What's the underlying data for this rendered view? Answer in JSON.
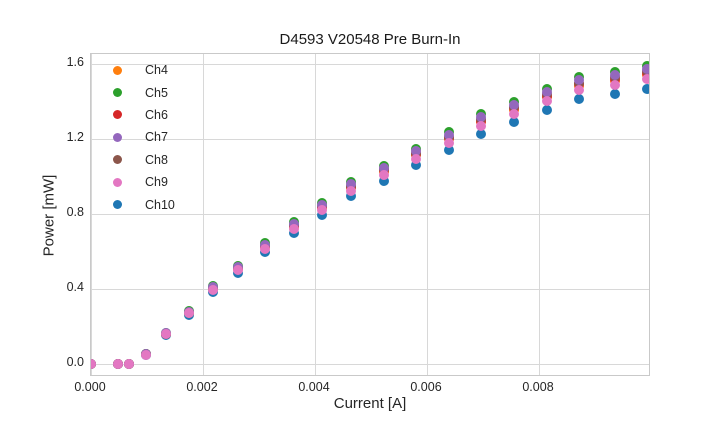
{
  "chart_data": {
    "type": "scatter",
    "title": "D4593 V20548 Pre Burn-In",
    "xlabel": "Current [A]",
    "ylabel": "Power [mW]",
    "xlim": [
      0,
      0.01
    ],
    "ylim": [
      -0.069,
      1.653
    ],
    "grid": true,
    "legend_position": "upper left",
    "xticks": {
      "values": [
        0.0,
        0.002,
        0.004,
        0.006,
        0.008
      ],
      "labels": [
        "0.000",
        "0.002",
        "0.004",
        "0.006",
        "0.008"
      ]
    },
    "yticks": {
      "values": [
        0.0,
        0.4,
        0.8,
        1.2,
        1.6
      ],
      "labels": [
        "0.0",
        "0.4",
        "0.8",
        "1.2",
        "1.6"
      ]
    },
    "x": [
      0.0,
      0.00048,
      0.00068,
      0.00098,
      0.00134,
      0.00175,
      0.00218,
      0.00263,
      0.00311,
      0.00363,
      0.00412,
      0.00465,
      0.00524,
      0.0058,
      0.00639,
      0.00696,
      0.00755,
      0.00814,
      0.00872,
      0.00935,
      0.00993
    ],
    "series": [
      {
        "name": "Ch4",
        "color": "#ff7f0e",
        "values": [
          0,
          0,
          0,
          0.051,
          0.161,
          0.274,
          0.401,
          0.508,
          0.625,
          0.732,
          0.833,
          0.94,
          1.026,
          1.113,
          1.199,
          1.29,
          1.356,
          1.422,
          1.483,
          1.511,
          1.542
        ]
      },
      {
        "name": "Ch5",
        "color": "#2ca02c",
        "values": [
          0,
          0,
          0,
          0.052,
          0.166,
          0.283,
          0.414,
          0.524,
          0.645,
          0.755,
          0.859,
          0.969,
          1.058,
          1.148,
          1.237,
          1.331,
          1.399,
          1.467,
          1.53,
          1.558,
          1.591
        ]
      },
      {
        "name": "Ch6",
        "color": "#d62728",
        "values": [
          0,
          0,
          0,
          0.051,
          0.161,
          0.276,
          0.404,
          0.511,
          0.629,
          0.736,
          0.838,
          0.945,
          1.032,
          1.119,
          1.206,
          1.298,
          1.364,
          1.431,
          1.492,
          1.52,
          1.551
        ]
      },
      {
        "name": "Ch7",
        "color": "#9467bd",
        "values": [
          0,
          0,
          0,
          0.052,
          0.164,
          0.28,
          0.409,
          0.518,
          0.637,
          0.746,
          0.85,
          0.958,
          1.046,
          1.134,
          1.222,
          1.316,
          1.383,
          1.45,
          1.513,
          1.541,
          1.573
        ]
      },
      {
        "name": "Ch8",
        "color": "#8c564b",
        "values": [
          0,
          0,
          0,
          0.051,
          0.162,
          0.278,
          0.406,
          0.514,
          0.632,
          0.74,
          0.843,
          0.951,
          1.038,
          1.126,
          1.213,
          1.306,
          1.372,
          1.439,
          1.501,
          1.529,
          1.561
        ]
      },
      {
        "name": "Ch9",
        "color": "#e377c2",
        "values": [
          0,
          0,
          0,
          0.05,
          0.158,
          0.27,
          0.395,
          0.5,
          0.615,
          0.72,
          0.82,
          0.925,
          1.01,
          1.095,
          1.18,
          1.27,
          1.335,
          1.4,
          1.46,
          1.487,
          1.518
        ]
      },
      {
        "name": "Ch10",
        "color": "#1f77b4",
        "values": [
          0,
          0,
          0,
          0.048,
          0.153,
          0.261,
          0.382,
          0.484,
          0.595,
          0.697,
          0.794,
          0.895,
          0.978,
          1.06,
          1.142,
          1.229,
          1.292,
          1.355,
          1.413,
          1.439,
          1.469
        ]
      }
    ],
    "draw_order": [
      "Ch10",
      "Ch4",
      "Ch6",
      "Ch8",
      "Ch5",
      "Ch7",
      "Ch9"
    ]
  }
}
